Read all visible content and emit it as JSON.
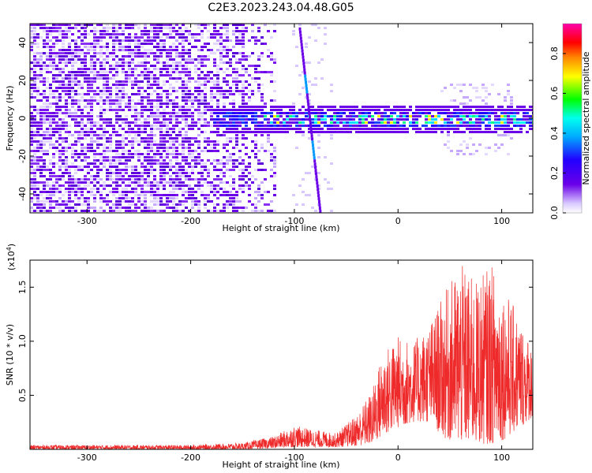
{
  "title": "C2E3.2023.243.04.48.G05",
  "colors": {
    "heatmap_purple": "#6a00e8",
    "snr_red": "#ee2a2a"
  },
  "chart_data": [
    {
      "type": "heatmap",
      "xlabel": "Height of straight line (km)",
      "ylabel": "Frequency (Hz)",
      "xlim": [
        -355,
        130
      ],
      "ylim": [
        -50,
        50
      ],
      "xticks": [
        -300,
        -200,
        -100,
        0,
        100
      ],
      "yticks": [
        -40,
        -20,
        0,
        20,
        40
      ],
      "colorbar": {
        "label": "Normalized spectral amplitude",
        "range": [
          0,
          0.95
        ],
        "ticks": [
          "0.0",
          "0.2",
          "0.4",
          "0.6",
          "0.8"
        ],
        "colormap": [
          "#ffffff",
          "#6a00e8",
          "#2200ff",
          "#00d8ff",
          "#00ff00",
          "#ffff00",
          "#ff8800",
          "#ff0000",
          "#ff00aa"
        ]
      },
      "features": {
        "noise_region_x": [
          -355,
          -120
        ],
        "signal_band_x": [
          -180,
          130
        ],
        "signal_band_center_hz": 0,
        "signal_band_halfwidth_hz": 8,
        "streak_x": [
          -95,
          -75
        ]
      }
    },
    {
      "type": "line",
      "xlabel": "Height of straight line (km)",
      "ylabel": "SNR (10 * v/v)",
      "multiplier_label": "(x10",
      "multiplier_exp": "4",
      "multiplier_close": ")",
      "xlim": [
        -355,
        130
      ],
      "ylim": [
        0,
        1.75
      ],
      "xticks": [
        -300,
        -200,
        -100,
        0,
        100
      ],
      "yticks": [
        "0.5",
        "1.0",
        "1.5"
      ],
      "series": [
        {
          "color": "#ee2a2a",
          "envelope": [
            {
              "x": -355,
              "low": 0.0,
              "high": 0.04
            },
            {
              "x": -300,
              "low": 0.0,
              "high": 0.04
            },
            {
              "x": -200,
              "low": 0.0,
              "high": 0.04
            },
            {
              "x": -150,
              "low": 0.0,
              "high": 0.06
            },
            {
              "x": -120,
              "low": 0.01,
              "high": 0.12
            },
            {
              "x": -100,
              "low": 0.02,
              "high": 0.22
            },
            {
              "x": -80,
              "low": 0.02,
              "high": 0.18
            },
            {
              "x": -60,
              "low": 0.02,
              "high": 0.15
            },
            {
              "x": -40,
              "low": 0.03,
              "high": 0.32
            },
            {
              "x": -25,
              "low": 0.05,
              "high": 0.55
            },
            {
              "x": -15,
              "low": 0.12,
              "high": 0.9
            },
            {
              "x": 0,
              "low": 0.2,
              "high": 1.05
            },
            {
              "x": 15,
              "low": 0.25,
              "high": 1.0
            },
            {
              "x": 30,
              "low": 0.25,
              "high": 1.15
            },
            {
              "x": 45,
              "low": 0.1,
              "high": 1.45
            },
            {
              "x": 60,
              "low": 0.05,
              "high": 1.72
            },
            {
              "x": 75,
              "low": 0.05,
              "high": 1.55
            },
            {
              "x": 90,
              "low": 0.05,
              "high": 1.72
            },
            {
              "x": 105,
              "low": 0.1,
              "high": 1.45
            },
            {
              "x": 118,
              "low": 0.2,
              "high": 1.2
            },
            {
              "x": 130,
              "low": 0.3,
              "high": 0.95
            }
          ]
        }
      ]
    }
  ]
}
